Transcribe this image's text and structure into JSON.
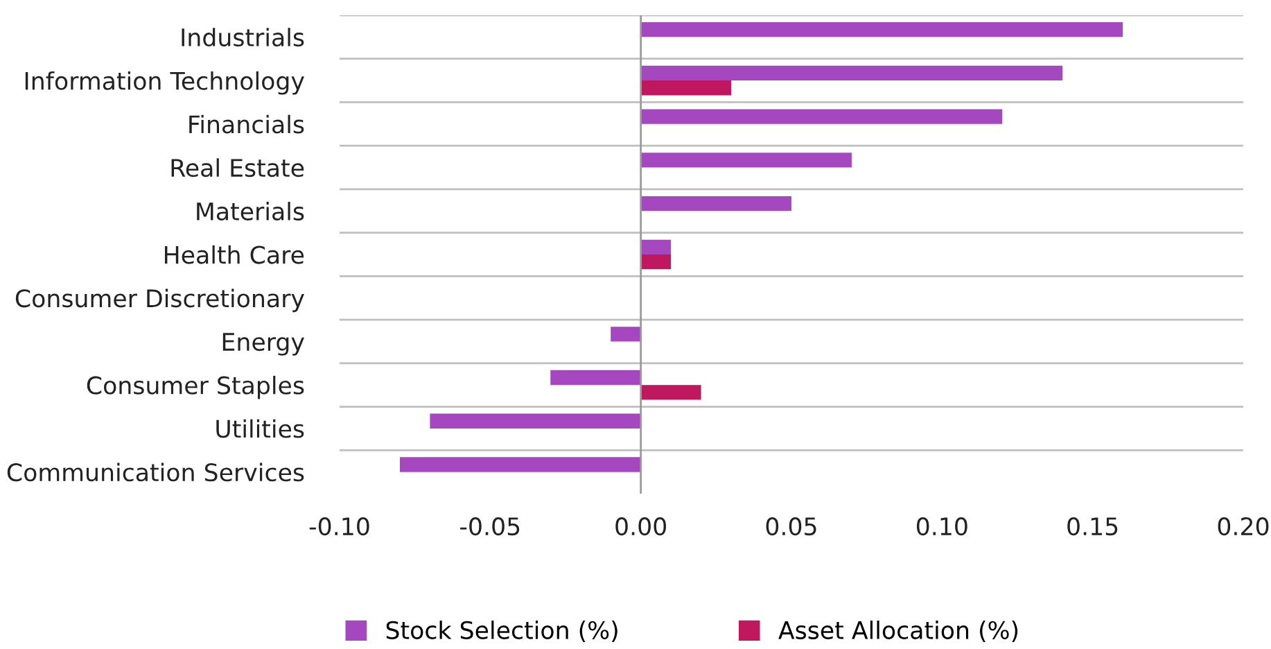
{
  "chart_data": {
    "type": "bar",
    "orientation": "horizontal",
    "categories": [
      "Industrials",
      "Information Technology",
      "Financials",
      "Real Estate",
      "Materials",
      "Health Care",
      "Consumer Discretionary",
      "Energy",
      "Consumer Staples",
      "Utilities",
      "Communication Services"
    ],
    "series": [
      {
        "name": "Stock Selection (%)",
        "color": "#a548bf",
        "values": [
          0.16,
          0.14,
          0.12,
          0.07,
          0.05,
          0.01,
          0.0,
          -0.01,
          -0.03,
          -0.07,
          -0.08
        ]
      },
      {
        "name": "Asset Allocation (%)",
        "color": "#c0185e",
        "values": [
          0.0,
          0.03,
          0.0,
          0.0,
          0.0,
          0.01,
          0.0,
          0.0,
          0.02,
          0.0,
          0.0
        ]
      }
    ],
    "xlim": [
      -0.1,
      0.2
    ],
    "xticks": [
      {
        "value": -0.1,
        "label": "-0.10"
      },
      {
        "value": -0.05,
        "label": "-0.05"
      },
      {
        "value": 0.0,
        "label": "0.00"
      },
      {
        "value": 0.05,
        "label": "0.05"
      },
      {
        "value": 0.1,
        "label": "0.10"
      },
      {
        "value": 0.15,
        "label": "0.15"
      },
      {
        "value": 0.2,
        "label": "0.20"
      }
    ],
    "grid": "y",
    "legend": "bottom"
  }
}
